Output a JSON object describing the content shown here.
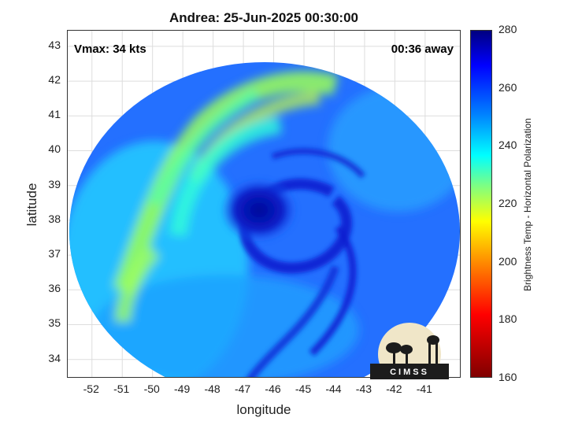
{
  "title": "Andrea: 25-Jun-2025 00:30:00",
  "vmax_text": "Vmax: 34 kts",
  "time_away_text": "00:36 away",
  "x_axis": {
    "label": "longitude",
    "ticks": [
      "-52",
      "-51",
      "-50",
      "-49",
      "-48",
      "-47",
      "-46",
      "-45",
      "-44",
      "-43",
      "-42",
      "-41"
    ]
  },
  "y_axis": {
    "label": "latitude",
    "ticks": [
      "34",
      "35",
      "36",
      "37",
      "38",
      "39",
      "40",
      "41",
      "42",
      "43"
    ]
  },
  "colorbar": {
    "label": "Brightness Temp - Horizontal Polarization",
    "ticks": [
      "160",
      "180",
      "200",
      "220",
      "240",
      "260",
      "280"
    ]
  },
  "logo_text": "CIMSS",
  "map": {
    "lon_range": [
      -52.8,
      -39.8
    ],
    "lat_range": [
      33.45,
      43.45
    ],
    "storm_center": {
      "lon": -46.3,
      "lat": 38.5
    },
    "swath_color_dominant": "#1e64ff",
    "colors": {
      "core": "#0a1ec8",
      "band": "#23ffd7",
      "dry_slot": "#96ff5a",
      "outer": "#1e8cff"
    }
  }
}
